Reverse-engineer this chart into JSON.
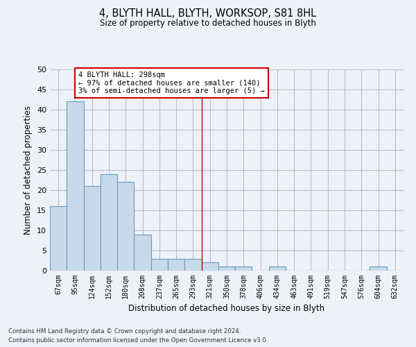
{
  "title": "4, BLYTH HALL, BLYTH, WORKSOP, S81 8HL",
  "subtitle": "Size of property relative to detached houses in Blyth",
  "xlabel": "Distribution of detached houses by size in Blyth",
  "ylabel": "Number of detached properties",
  "footnote1": "Contains HM Land Registry data © Crown copyright and database right 2024.",
  "footnote2": "Contains public sector information licensed under the Open Government Licence v3.0.",
  "categories": [
    "67sqm",
    "95sqm",
    "124sqm",
    "152sqm",
    "180sqm",
    "208sqm",
    "237sqm",
    "265sqm",
    "293sqm",
    "321sqm",
    "350sqm",
    "378sqm",
    "406sqm",
    "434sqm",
    "463sqm",
    "491sqm",
    "519sqm",
    "547sqm",
    "576sqm",
    "604sqm",
    "632sqm"
  ],
  "values": [
    16,
    42,
    21,
    24,
    22,
    9,
    3,
    3,
    3,
    2,
    1,
    1,
    0,
    1,
    0,
    0,
    0,
    0,
    0,
    1,
    0
  ],
  "bar_color": "#c8daea",
  "bar_edge_color": "#6699bb",
  "grid_color": "#bbbbcc",
  "annotation_text": "4 BLYTH HALL: 298sqm\n← 97% of detached houses are smaller (140)\n3% of semi-detached houses are larger (5) →",
  "annotation_box_color": "#ffffff",
  "annotation_box_edge": "#cc0000",
  "vline_x_index": 8.5,
  "ylim": [
    0,
    50
  ],
  "yticks": [
    0,
    5,
    10,
    15,
    20,
    25,
    30,
    35,
    40,
    45,
    50
  ],
  "bg_color": "#eef2f8"
}
